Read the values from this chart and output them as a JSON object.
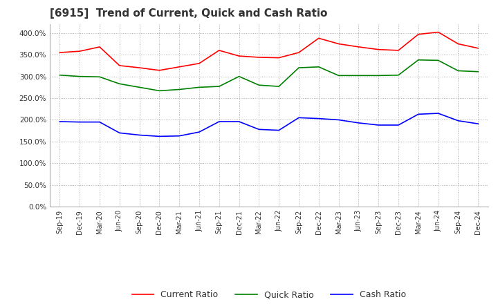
{
  "title": "[6915]  Trend of Current, Quick and Cash Ratio",
  "x_labels": [
    "Sep-19",
    "Dec-19",
    "Mar-20",
    "Jun-20",
    "Sep-20",
    "Dec-20",
    "Mar-21",
    "Jun-21",
    "Sep-21",
    "Dec-21",
    "Mar-22",
    "Jun-22",
    "Sep-22",
    "Dec-22",
    "Mar-23",
    "Jun-23",
    "Sep-23",
    "Dec-23",
    "Mar-24",
    "Jun-24",
    "Sep-24",
    "Dec-24"
  ],
  "current_ratio": [
    355.0,
    358.0,
    368.0,
    325.0,
    320.0,
    314.0,
    322.0,
    330.0,
    360.0,
    347.0,
    344.0,
    343.0,
    355.0,
    388.0,
    375.0,
    368.0,
    362.0,
    360.0,
    397.0,
    402.0,
    375.0,
    365.0
  ],
  "quick_ratio": [
    303.0,
    300.0,
    299.0,
    283.0,
    275.0,
    267.0,
    270.0,
    275.0,
    277.0,
    300.0,
    280.0,
    277.0,
    320.0,
    322.0,
    302.0,
    302.0,
    302.0,
    303.0,
    338.0,
    337.0,
    313.0,
    311.0
  ],
  "cash_ratio": [
    196.0,
    195.0,
    195.0,
    170.0,
    165.0,
    162.0,
    163.0,
    172.0,
    196.0,
    196.0,
    178.0,
    176.0,
    205.0,
    203.0,
    200.0,
    193.0,
    188.0,
    188.0,
    213.0,
    215.0,
    198.0,
    191.0
  ],
  "current_color": "#ff0000",
  "quick_color": "#008000",
  "cash_color": "#0000ff",
  "ylim": [
    0,
    420
  ],
  "yticks": [
    0,
    50,
    100,
    150,
    200,
    250,
    300,
    350,
    400
  ],
  "background_color": "#ffffff",
  "grid_color": "#aaaaaa",
  "title_fontsize": 11,
  "legend_labels": [
    "Current Ratio",
    "Quick Ratio",
    "Cash Ratio"
  ]
}
